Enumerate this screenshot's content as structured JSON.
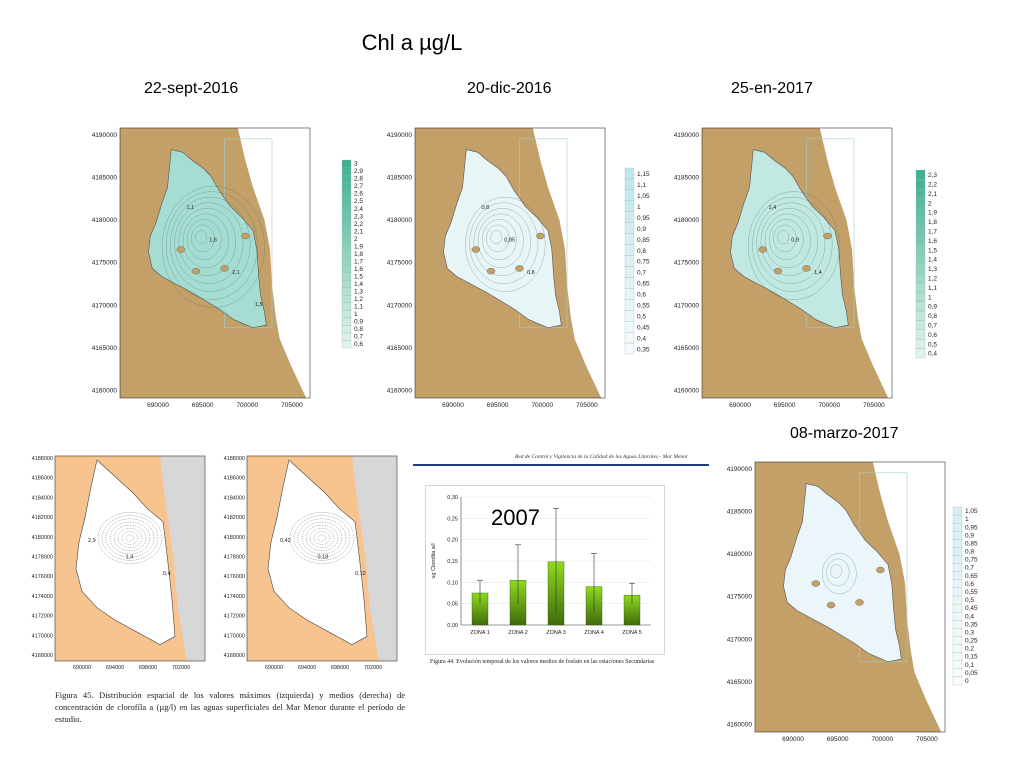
{
  "title": "Chl a µg/L",
  "maps": [
    {
      "date": "22-sept-2016",
      "legend": [
        "3",
        "2,9",
        "2,8",
        "2,7",
        "2,6",
        "2,5",
        "2,4",
        "2,3",
        "2,2",
        "2,1",
        "2",
        "1,9",
        "1,8",
        "1,7",
        "1,6",
        "1,5",
        "1,4",
        "1,3",
        "1,2",
        "1,1",
        "1",
        "0,9",
        "0,8",
        "0,7",
        "0,6"
      ],
      "legend_color": "#3fb08f"
    },
    {
      "date": "20-dic-2016",
      "legend": [
        "1,15",
        "1,1",
        "1,05",
        "1",
        "0,95",
        "0,9",
        "0,85",
        "0,8",
        "0,75",
        "0,7",
        "0,65",
        "0,6",
        "0,55",
        "0,5",
        "0,45",
        "0,4",
        "0,35"
      ],
      "legend_color": "#bfe6ea"
    },
    {
      "date": "25-en-2017",
      "legend": [
        "2,3",
        "2,2",
        "2,1",
        "2",
        "1,9",
        "1,8",
        "1,7",
        "1,6",
        "1,5",
        "1,4",
        "1,3",
        "1,2",
        "1,1",
        "1",
        "0,9",
        "0,8",
        "0,7",
        "0,6",
        "0,5",
        "0,4"
      ],
      "legend_color": "#3fb08f"
    },
    {
      "date": "08-marzo-2017",
      "legend": [
        "1,05",
        "1",
        "0,95",
        "0,9",
        "0,85",
        "0,8",
        "0,75",
        "0,7",
        "0,65",
        "0,6",
        "0,55",
        "0,5",
        "0,45",
        "0,4",
        "0,35",
        "0,3",
        "0,25",
        "0,2",
        "0,15",
        "0,1",
        "0,05",
        "0"
      ],
      "legend_color": "#d8eef3"
    }
  ],
  "map_axes": {
    "y_ticks": [
      "4190000",
      "4185000",
      "4180000",
      "4175000",
      "4170000",
      "4165000",
      "4160000"
    ],
    "x_ticks": [
      "690000",
      "695000",
      "700000",
      "705000"
    ]
  },
  "contour_labels": {
    "sept": [
      "1,1",
      "1,6",
      "2,1",
      "1,5"
    ],
    "dic": [
      "0,8",
      "0,85",
      "0,8"
    ],
    "en": [
      "1,4",
      "0,9",
      "1,4"
    ]
  },
  "bottom_left": {
    "y_ticks": [
      "4188000",
      "4186000",
      "4184000",
      "4182000",
      "4180000",
      "4178000",
      "4176000",
      "4174000",
      "4172000",
      "4170000",
      "4168000"
    ],
    "x_ticks_left": [
      "690000",
      "694000",
      "698000",
      "702000"
    ],
    "x_ticks_right": [
      "690000",
      "694000",
      "698000",
      "702000"
    ],
    "contour_labels_left": [
      "2,9",
      "1,4",
      "0,4"
    ],
    "contour_labels_right": [
      "0,42",
      "0,18",
      "0,12"
    ],
    "caption": "Figura 45. Distribución espacial de los valores máximos (izquierda) y medios (derecha) de concentración de clorofíla a (µg/l) en las aguas superficiales del Mar Menor durante el período de estudio."
  },
  "bar_chart_header": "Red de Control y Vigilancia de la Calidad de las Aguas Litorales - Mar Menor",
  "bar_chart_year": "2007",
  "bar_chart_caption": "Figura 44. Evolución temporal de los valores medios de fosfato en las estaciones Secundarias",
  "chart_data": {
    "type": "bar",
    "categories": [
      "ZONA 1",
      "ZONA 2",
      "ZONA 3",
      "ZONA 4",
      "ZONA 5"
    ],
    "values": [
      0.075,
      0.105,
      0.148,
      0.09,
      0.07
    ],
    "error_high": [
      0.105,
      0.188,
      0.273,
      0.168,
      0.098
    ],
    "error_low": [
      0.052,
      0.05,
      0.03,
      0.028,
      0.05
    ],
    "ylim": [
      0,
      0.3
    ],
    "y_ticks": [
      "0,30",
      "0,25",
      "0,20",
      "0,15",
      "0,10",
      "0,05",
      "0,00"
    ],
    "ylabel": "ug Clorofila a/l",
    "title": "2007"
  }
}
